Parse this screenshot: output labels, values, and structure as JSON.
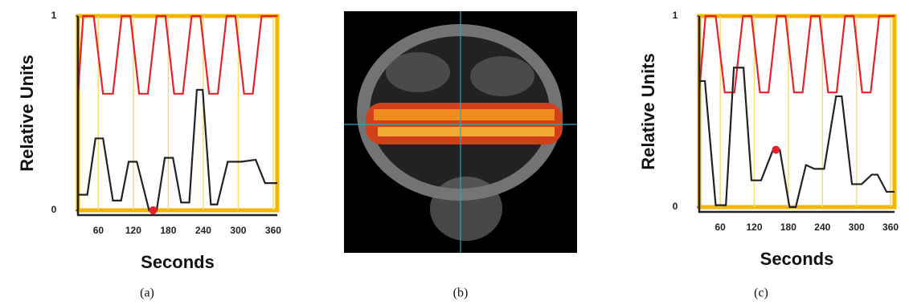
{
  "chart_data": [
    {
      "type": "line",
      "ylabel": "Relative Units",
      "xlabel": "Seconds",
      "caption": "(a)",
      "xlim": [
        25,
        367
      ],
      "ylim": [
        0,
        1
      ],
      "xticks": [
        60,
        120,
        180,
        240,
        300,
        360
      ],
      "yticks": [
        0,
        1
      ],
      "grid": true,
      "frame_color": "#f2b600",
      "series": [
        {
          "color": "#e8202a",
          "x": [
            25,
            34,
            52,
            68,
            85,
            100,
            115,
            130,
            145,
            160,
            175,
            190,
            205,
            220,
            235,
            250,
            265,
            280,
            295,
            310,
            325,
            340,
            367
          ],
          "values": [
            0.6,
            1,
            1,
            0.6,
            0.6,
            1,
            1,
            0.6,
            0.6,
            1,
            1,
            0.6,
            0.6,
            1,
            1,
            0.6,
            0.6,
            1,
            1,
            0.6,
            0.6,
            1,
            1
          ]
        },
        {
          "color": "#222222",
          "x": [
            26,
            41,
            55,
            68,
            85,
            99,
            112,
            126,
            147,
            160,
            174,
            188,
            202,
            216,
            229,
            239,
            253,
            264,
            282,
            305,
            330,
            346,
            367
          ],
          "values": [
            0.08,
            0.08,
            0.37,
            0.37,
            0.05,
            0.05,
            0.25,
            0.25,
            0,
            0,
            0.27,
            0.27,
            0.04,
            0.04,
            0.62,
            0.62,
            0.03,
            0.03,
            0.25,
            0.25,
            0.26,
            0.14,
            0.14
          ]
        }
      ],
      "marker": {
        "x": 154,
        "y": 0,
        "color": "#e8202a"
      }
    },
    {
      "type": "image",
      "caption": "(b)"
    },
    {
      "type": "line",
      "ylabel": "Relative Units",
      "xlabel": "Seconds",
      "caption": "(c)",
      "xlim": [
        23,
        367
      ],
      "ylim": [
        0,
        1
      ],
      "xticks": [
        60,
        120,
        180,
        240,
        300,
        360
      ],
      "yticks": [
        0,
        1
      ],
      "grid": true,
      "frame_color": "#f2b600",
      "series": [
        {
          "color": "#e8202a",
          "x": [
            23,
            34,
            52,
            68,
            85,
            100,
            115,
            130,
            145,
            160,
            175,
            190,
            205,
            220,
            235,
            250,
            265,
            280,
            295,
            310,
            325,
            340,
            367
          ],
          "values": [
            0.6,
            1,
            1,
            0.6,
            0.6,
            1,
            1,
            0.6,
            0.6,
            1,
            1,
            0.6,
            0.6,
            1,
            1,
            0.6,
            0.6,
            1,
            1,
            0.6,
            0.6,
            1,
            1
          ]
        },
        {
          "color": "#222222",
          "x": [
            23,
            33,
            52,
            70,
            84,
            101,
            115,
            132,
            153,
            165,
            182,
            193,
            211,
            226,
            243,
            264,
            274,
            292,
            309,
            327,
            337,
            353,
            367
          ],
          "values": [
            0.66,
            0.66,
            0.01,
            0.01,
            0.73,
            0.73,
            0.14,
            0.14,
            0.3,
            0.3,
            0,
            0,
            0.22,
            0.2,
            0.2,
            0.58,
            0.58,
            0.12,
            0.12,
            0.17,
            0.17,
            0.08,
            0.08
          ]
        }
      ],
      "marker": {
        "x": 158,
        "y": 0.3,
        "color": "#e8202a"
      }
    }
  ]
}
